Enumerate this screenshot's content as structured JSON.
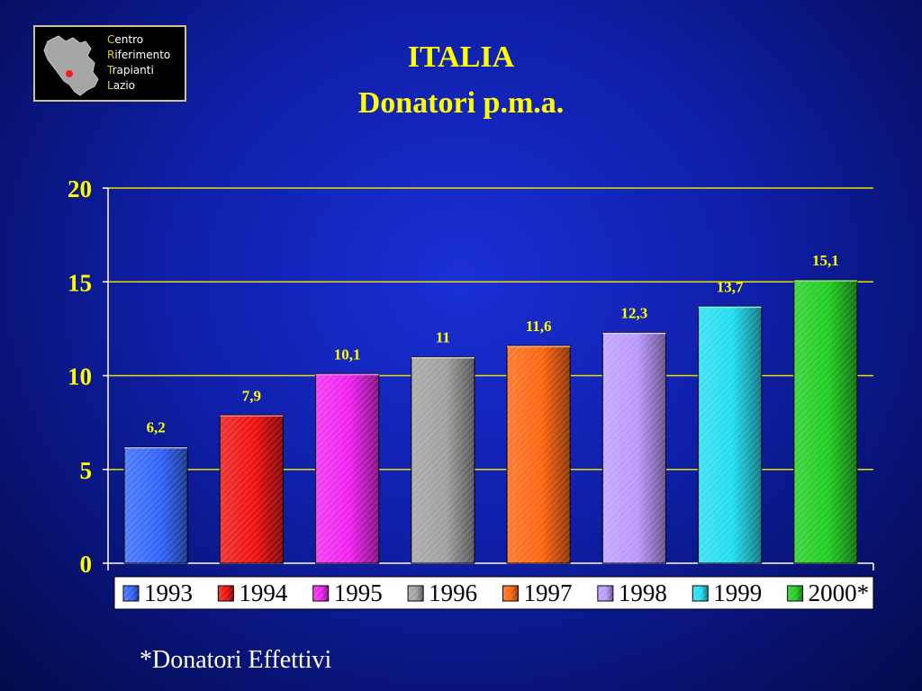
{
  "logo": {
    "lines": [
      {
        "initial": "C",
        "rest": "entro"
      },
      {
        "initial": "R",
        "rest": "iferimento"
      },
      {
        "initial": "T",
        "rest": "rapianti"
      },
      {
        "initial": "L",
        "rest": "azio"
      }
    ]
  },
  "title": {
    "line1": "ITALIA",
    "line2": "Donatori p.m.a."
  },
  "footnote": "*Donatori Effettivi",
  "colors": {
    "text_accent": "#ffff00",
    "gridline": "#e8e000",
    "axis": "#ffffff"
  },
  "chart_data": {
    "type": "bar",
    "categories": [
      "1993",
      "1994",
      "1995",
      "1996",
      "1997",
      "1998",
      "1999",
      "2000*"
    ],
    "values": [
      6.2,
      7.9,
      10.1,
      11,
      11.6,
      12.3,
      13.7,
      15.1
    ],
    "value_labels": [
      "6,2",
      "7,9",
      "10,1",
      "11",
      "11,6",
      "12,3",
      "13,7",
      "15,1"
    ],
    "colors": [
      "#3366ff",
      "#ee1111",
      "#ee22ee",
      "#a0a0a0",
      "#ff6611",
      "#bb99ff",
      "#22ddee",
      "#22cc22"
    ],
    "legend": [
      "1993",
      "1994",
      "1995",
      "1996",
      "1997",
      "1998",
      "1999",
      "2000*"
    ],
    "legend_position": "bottom",
    "yticks": [
      "0",
      "5",
      "10",
      "15",
      "20"
    ],
    "ylim": [
      0,
      20
    ],
    "grid": true
  }
}
